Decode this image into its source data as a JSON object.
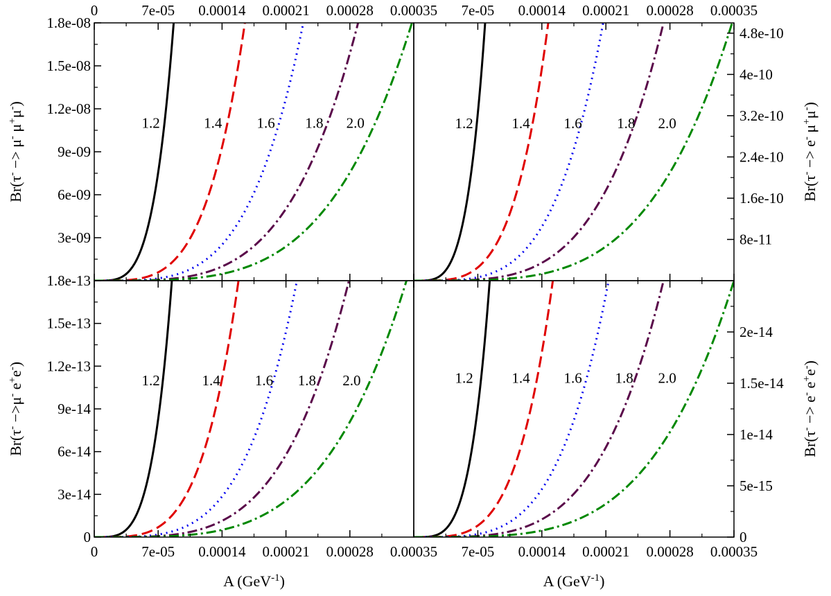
{
  "figure": {
    "description_free": true,
    "shared_x": {
      "ticks": [
        0,
        7e-05,
        0.00014,
        0.00021,
        0.00028,
        0.00035
      ],
      "tick_labels": [
        "0",
        "7e-05",
        "0.00014",
        "0.00021",
        "0.00028",
        "0.00035"
      ],
      "xlabel_main": "A (GeV",
      "xlabel_sup": "-1",
      "xlabel_end": ")"
    },
    "series_styles": [
      {
        "label": "1.2",
        "color": "#000000",
        "dash": "none"
      },
      {
        "label": "1.4",
        "color": "#e00000",
        "dash": "16,7"
      },
      {
        "label": "1.6",
        "color": "#0000ee",
        "dash": "2,6"
      },
      {
        "label": "1.8",
        "color": "#5a0a4a",
        "dash": "14,5,3,5"
      },
      {
        "label": "2.0",
        "color": "#008800",
        "dash": "14,5,3,5"
      }
    ]
  },
  "chart_data": [
    {
      "type": "line",
      "panel": "top-left",
      "xlim": [
        0,
        0.00035
      ],
      "ylim": [
        1.8e-13,
        1.8e-08
      ],
      "yticks": [
        1.8e-13,
        3e-09,
        6e-09,
        9e-09,
        1.2e-08,
        1.5e-08,
        1.8e-08
      ],
      "ytick_labels": [
        "1.8e-13",
        "3e-09",
        "6e-09",
        "9e-09",
        "1.2e-08",
        "1.5e-08",
        "1.8e-08"
      ],
      "ylabel": {
        "parts": [
          {
            "t": "Br(τ",
            "s": "-"
          },
          {
            "t": " −> μ",
            "s": "-"
          },
          {
            "t": " μ",
            "s": "+"
          },
          {
            "t": "μ",
            "s": "-"
          },
          {
            "t": ")",
            "s": ""
          }
        ]
      },
      "series": [
        {
          "label": "1.2",
          "x_end": 8.7e-05,
          "exponent": 4
        },
        {
          "label": "1.4",
          "x_end": 0.000165,
          "exponent": 4
        },
        {
          "label": "1.6",
          "x_end": 0.000229,
          "exponent": 4
        },
        {
          "label": "1.8",
          "x_end": 0.000289,
          "exponent": 4
        },
        {
          "label": "2.0",
          "x_end": 0.000348,
          "exponent": 4
        }
      ],
      "labels_at_y": 1.1e-08,
      "label_x": [
        6.2e-05,
        0.00013,
        0.000188,
        0.000241,
        0.000286
      ]
    },
    {
      "type": "line",
      "panel": "top-right",
      "xlim": [
        0,
        0.00035
      ],
      "ylim": [
        2.5e-14,
        5e-10
      ],
      "yticks": [
        8e-11,
        1.6e-10,
        2.4e-10,
        3.2e-10,
        4e-10,
        4.8e-10
      ],
      "ytick_labels": [
        "8e-11",
        "1.6e-10",
        "2.4e-10",
        "3.2e-10",
        "4e-10",
        "4.8e-10"
      ],
      "ylabel": {
        "parts": [
          {
            "t": "Br(τ",
            "s": "-"
          },
          {
            "t": " −> e",
            "s": "-"
          },
          {
            "t": " μ",
            "s": "+"
          },
          {
            "t": "μ",
            "s": "-"
          },
          {
            "t": ")",
            "s": ""
          }
        ]
      },
      "series": [
        {
          "label": "1.2",
          "x_end": 7.8e-05,
          "exponent": 4
        },
        {
          "label": "1.4",
          "x_end": 0.000147,
          "exponent": 4
        },
        {
          "label": "1.6",
          "x_end": 0.000207,
          "exponent": 4
        },
        {
          "label": "1.8",
          "x_end": 0.000273,
          "exponent": 4
        },
        {
          "label": "2.0",
          "x_end": 0.000348,
          "exponent": 4
        }
      ],
      "labels_at_y": 3.05e-10,
      "label_x": [
        5.5e-05,
        0.000117,
        0.000174,
        0.000232,
        0.000277
      ]
    },
    {
      "type": "line",
      "panel": "bottom-left",
      "xlim": [
        0,
        0.00035
      ],
      "ylim": [
        0,
        1.8e-13
      ],
      "yticks": [
        0,
        3e-14,
        6e-14,
        9e-14,
        1.2e-13,
        1.5e-13
      ],
      "ytick_labels": [
        "0",
        "3e-14",
        "6e-14",
        "9e-14",
        "1.2e-13",
        "1.5e-13"
      ],
      "ylabel": {
        "parts": [
          {
            "t": "Br(τ",
            "s": "-"
          },
          {
            "t": " −>μ",
            "s": "-"
          },
          {
            "t": " e",
            "s": "+"
          },
          {
            "t": "e",
            "s": "-"
          },
          {
            "t": ")",
            "s": ""
          }
        ]
      },
      "series": [
        {
          "label": "1.2",
          "x_end": 8.5e-05,
          "exponent": 4
        },
        {
          "label": "1.4",
          "x_end": 0.000158,
          "exponent": 4
        },
        {
          "label": "1.6",
          "x_end": 0.000222,
          "exponent": 4
        },
        {
          "label": "1.8",
          "x_end": 0.000279,
          "exponent": 4
        },
        {
          "label": "2.0",
          "x_end": 0.000342,
          "exponent": 4
        }
      ],
      "labels_at_y": 1.1e-13,
      "label_x": [
        6.2e-05,
        0.000128,
        0.000186,
        0.000233,
        0.000282
      ]
    },
    {
      "type": "line",
      "panel": "bottom-right",
      "xlim": [
        0,
        0.00035
      ],
      "ylim": [
        0,
        2.5e-14
      ],
      "yticks": [
        0,
        5e-15,
        1e-14,
        1.5e-14,
        2e-14
      ],
      "ytick_labels": [
        "0",
        "5e-15",
        "1e-14",
        "1.5e-14",
        "2e-14"
      ],
      "ylabel": {
        "parts": [
          {
            "t": "Br(τ",
            "s": "-"
          },
          {
            "t": " −> e",
            "s": "-"
          },
          {
            "t": " e",
            "s": "+"
          },
          {
            "t": "e",
            "s": "-"
          },
          {
            "t": ")",
            "s": ""
          }
        ]
      },
      "series": [
        {
          "label": "1.2",
          "x_end": 8.3e-05,
          "exponent": 4
        },
        {
          "label": "1.4",
          "x_end": 0.000152,
          "exponent": 4
        },
        {
          "label": "1.6",
          "x_end": 0.000213,
          "exponent": 4
        },
        {
          "label": "1.8",
          "x_end": 0.000273,
          "exponent": 4
        },
        {
          "label": "2.0",
          "x_end": 0.00035,
          "exponent": 4
        }
      ],
      "labels_at_y": 1.55e-14,
      "label_x": [
        5.5e-05,
        0.000117,
        0.000174,
        0.00023,
        0.000277
      ]
    }
  ]
}
